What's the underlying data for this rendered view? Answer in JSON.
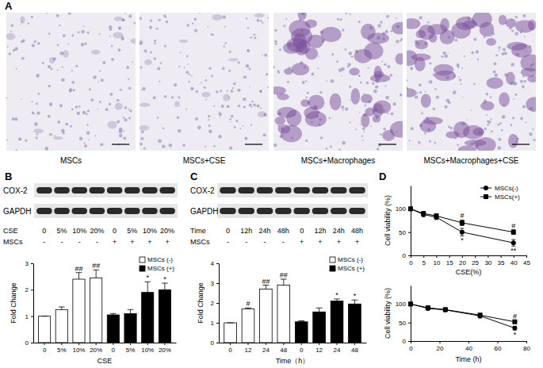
{
  "figure": {
    "panel_labels": [
      "A",
      "B",
      "C",
      "D"
    ],
    "images": [
      "MSCs",
      "MSCs+CSE",
      "MSCs+Macrophages",
      "MSCs+Macrophages+CSE"
    ],
    "blots": [
      {
        "proteins": [
          "COX-2",
          "GAPDH"
        ],
        "conditions": [
          {
            "name": "CSE",
            "lanes": [
              "0",
              "5%",
              "10%",
              "20%",
              "0",
              "5%",
              "10%",
              "20%"
            ]
          },
          {
            "name": "MSCs",
            "lanes": [
              "-",
              "-",
              "-",
              "-",
              "+",
              "+",
              "+",
              "+"
            ]
          }
        ]
      },
      {
        "proteins": [
          "COX-2",
          "GAPDH"
        ],
        "conditions": [
          {
            "name": "Time",
            "lanes": [
              "0",
              "12h",
              "24h",
              "48h",
              "0",
              "12h",
              "24h",
              "48h"
            ]
          },
          {
            "name": "MSCs",
            "lanes": [
              "-",
              "-",
              "-",
              "-",
              "+",
              "+",
              "+",
              "+"
            ]
          }
        ]
      }
    ]
  },
  "chart_data": [
    {
      "type": "bar",
      "x_label": "CSE",
      "y_label": "Fold Change",
      "categories": [
        "0",
        "5%",
        "10%",
        "20%",
        "0",
        "5%",
        "10%",
        "20%"
      ],
      "series": [
        {
          "name": "MSCs (-)",
          "color": "#ffffff",
          "values": [
            1,
            1.25,
            2.4,
            2.45,
            null,
            null,
            null,
            null
          ],
          "errors": [
            0,
            0.1,
            0.25,
            0.3,
            null,
            null,
            null,
            null
          ]
        },
        {
          "name": "MSCs (+)",
          "color": "#000000",
          "values": [
            null,
            null,
            null,
            null,
            1.05,
            1.1,
            1.9,
            2.0
          ],
          "errors": [
            null,
            null,
            null,
            null,
            0.05,
            0.15,
            0.4,
            0.25
          ]
        }
      ],
      "annotations": [
        {
          "text": "##",
          "series": 0,
          "index": 2
        },
        {
          "text": "##",
          "series": 0,
          "index": 3
        },
        {
          "text": "*",
          "series": 1,
          "index": 6
        },
        {
          "text": "*",
          "series": 1,
          "index": 7
        }
      ],
      "ylim": [
        0,
        3
      ],
      "yticks": [
        0,
        1,
        2,
        3
      ],
      "legend": "top-right"
    },
    {
      "type": "bar",
      "x_label": "Time（h）",
      "y_label": "Fold Change",
      "categories": [
        "0",
        "12",
        "24",
        "48",
        "0",
        "12",
        "24",
        "48"
      ],
      "series": [
        {
          "name": "MSCs (-)",
          "color": "#ffffff",
          "values": [
            1,
            1.7,
            2.7,
            2.9,
            null,
            null,
            null,
            null
          ],
          "errors": [
            0,
            0.05,
            0.2,
            0.3,
            null,
            null,
            null,
            null
          ]
        },
        {
          "name": "MSCs (+)",
          "color": "#000000",
          "values": [
            null,
            null,
            null,
            null,
            1.05,
            1.55,
            2.1,
            1.95
          ],
          "errors": [
            null,
            null,
            null,
            null,
            0.05,
            0.2,
            0.1,
            0.2
          ]
        }
      ],
      "annotations": [
        {
          "text": "#",
          "series": 0,
          "index": 1
        },
        {
          "text": "##",
          "series": 0,
          "index": 2
        },
        {
          "text": "##",
          "series": 0,
          "index": 3
        },
        {
          "text": "*",
          "series": 1,
          "index": 6
        },
        {
          "text": "*",
          "series": 1,
          "index": 7
        }
      ],
      "ylim": [
        0,
        4
      ],
      "yticks": [
        0,
        1,
        2,
        3,
        4
      ],
      "legend": "top-right"
    },
    {
      "type": "line",
      "x_label": "CSE(%)",
      "y_label": "Cell viability (%)",
      "x": [
        0,
        5,
        10,
        20,
        40
      ],
      "series": [
        {
          "name": "MSCs(-)",
          "color": "#000000",
          "marker": "circle",
          "values": [
            100,
            88,
            82,
            50,
            27
          ],
          "errors": [
            0,
            5,
            5,
            8,
            7
          ]
        },
        {
          "name": "MSCs(+)",
          "color": "#000000",
          "marker": "square",
          "values": [
            100,
            90,
            85,
            70,
            50
          ],
          "errors": [
            0,
            4,
            4,
            6,
            5
          ]
        }
      ],
      "annotations": [
        {
          "text": "*",
          "series": 0,
          "index": 3
        },
        {
          "text": "**",
          "series": 0,
          "index": 4
        },
        {
          "text": "#",
          "series": 1,
          "index": 3
        },
        {
          "text": "#",
          "series": 1,
          "index": 4
        }
      ],
      "xlim": [
        0,
        45
      ],
      "xticks": [
        0,
        5,
        10,
        15,
        20,
        25,
        30,
        35,
        40,
        45
      ],
      "ylim": [
        0,
        150
      ],
      "yticks": [
        0,
        50,
        100
      ],
      "legend": "top-right"
    },
    {
      "type": "line",
      "x_label": "Time (h)",
      "y_label": "Cell viability (%)",
      "x": [
        0,
        12,
        24,
        48,
        72
      ],
      "series": [
        {
          "name": "MSCs(-)",
          "color": "#000000",
          "marker": "circle",
          "values": [
            100,
            88,
            84,
            68,
            35
          ],
          "errors": [
            0,
            4,
            4,
            6,
            5
          ]
        },
        {
          "name": "MSCs(+)",
          "color": "#000000",
          "marker": "square",
          "values": [
            100,
            90,
            85,
            70,
            52
          ],
          "errors": [
            0,
            3,
            3,
            5,
            4
          ]
        }
      ],
      "annotations": [
        {
          "text": "*",
          "series": 0,
          "index": 4
        },
        {
          "text": "#",
          "series": 1,
          "index": 4
        }
      ],
      "xlim": [
        0,
        80
      ],
      "xticks": [
        0,
        20,
        40,
        60,
        80
      ],
      "ylim": [
        0,
        150
      ],
      "yticks": [
        0,
        50,
        100
      ],
      "legend": false
    }
  ]
}
